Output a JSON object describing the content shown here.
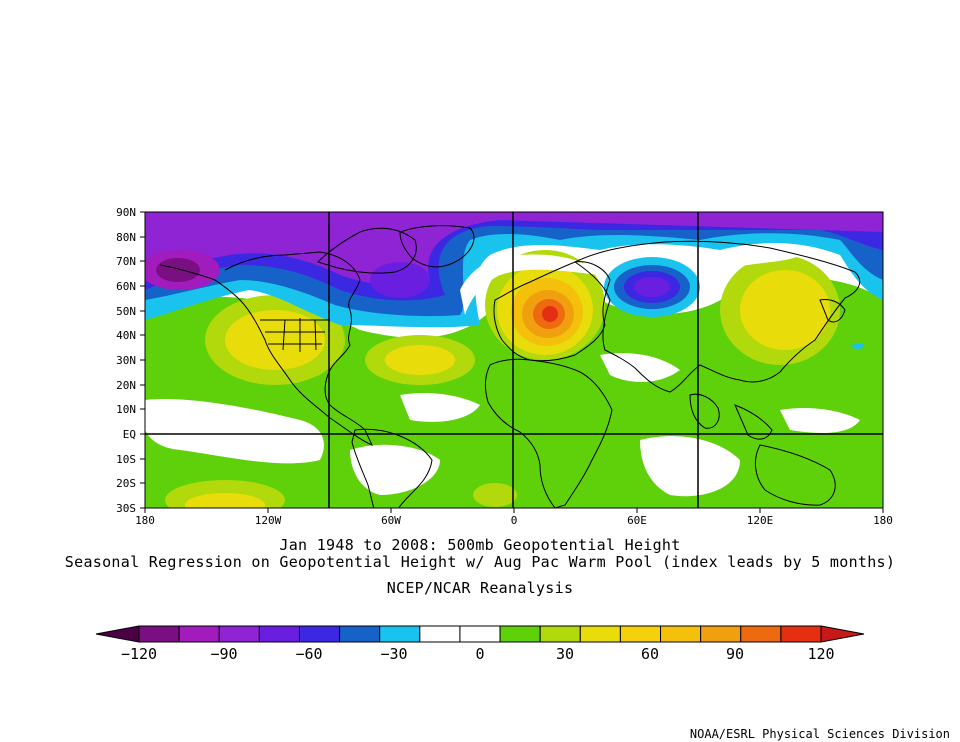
{
  "map": {
    "lat_ticks": [
      "90N",
      "80N",
      "70N",
      "60N",
      "50N",
      "40N",
      "30N",
      "20N",
      "10N",
      "EQ",
      "10S",
      "20S",
      "30S"
    ],
    "lon_ticks": [
      "180",
      "120W",
      "60W",
      "0",
      "60E",
      "120E",
      "180"
    ]
  },
  "titles": {
    "line1": "Jan 1948 to 2008: 500mb Geopotential Height",
    "line2": "Seasonal Regression on Geopotential Height  w/ Aug Pac Warm Pool (index leads by 5 months)",
    "line3": "NCEP/NCAR Reanalysis"
  },
  "colorbar": {
    "labels": [
      "-120",
      "-90",
      "-60",
      "-30",
      "0",
      "30",
      "60",
      "90",
      "120"
    ],
    "colors": [
      "#4b0046",
      "#7a0f82",
      "#a11bbd",
      "#8f24d4",
      "#6a1fe0",
      "#3c28e2",
      "#1762c9",
      "#1ac3ee",
      "#ffffff",
      "#ffffff",
      "#5fd10b",
      "#b1d90c",
      "#e8dd0a",
      "#f4d10a",
      "#f5c00b",
      "#f09f0e",
      "#ee6a10",
      "#e52e12",
      "#c81818"
    ]
  },
  "credit": "NOAA/ESRL Physical Sciences Division"
}
